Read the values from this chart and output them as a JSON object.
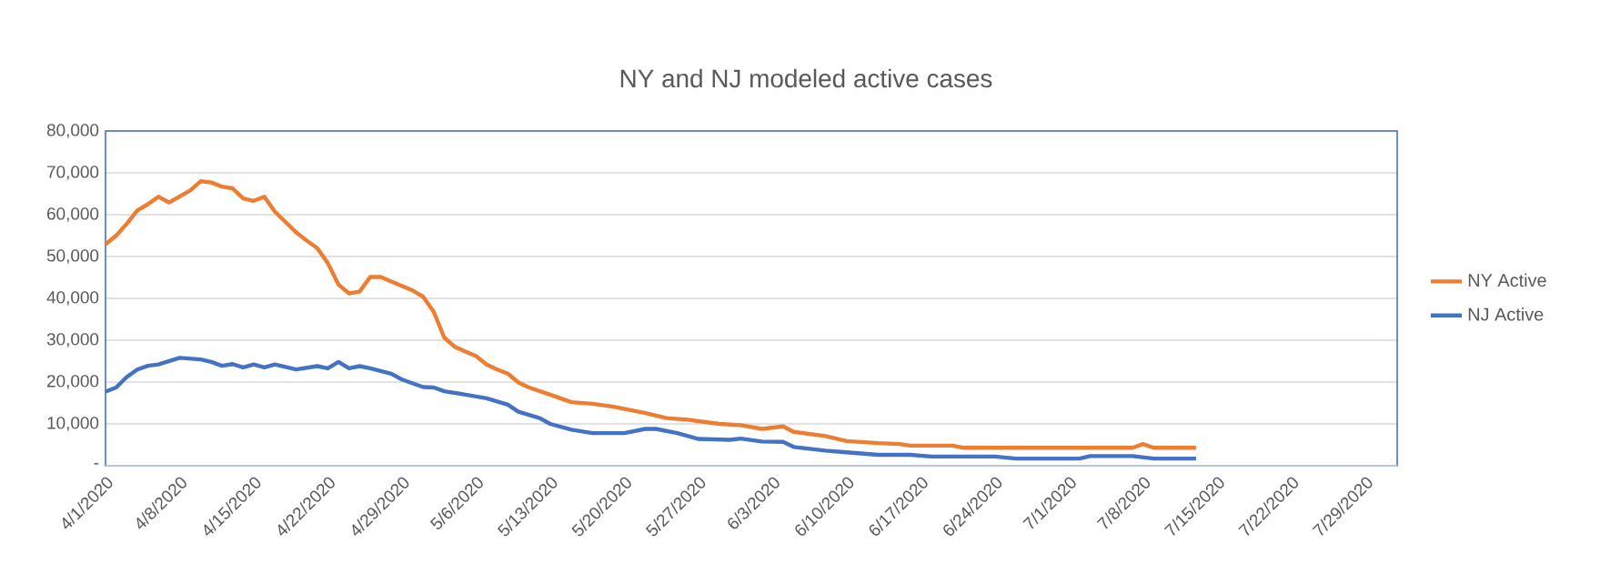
{
  "chart_data": {
    "type": "line",
    "title": "NY and NJ modeled active cases",
    "xlim": [
      "2020-04-01",
      "2020-08-01"
    ],
    "ylim": [
      0,
      80000
    ],
    "xticks": [
      {
        "value": "2020-04-01",
        "label": "4/1/2020"
      },
      {
        "value": "2020-04-08",
        "label": "4/8/2020"
      },
      {
        "value": "2020-04-15",
        "label": "4/15/2020"
      },
      {
        "value": "2020-04-22",
        "label": "4/22/2020"
      },
      {
        "value": "2020-04-29",
        "label": "4/29/2020"
      },
      {
        "value": "2020-05-06",
        "label": "5/6/2020"
      },
      {
        "value": "2020-05-13",
        "label": "5/13/2020"
      },
      {
        "value": "2020-05-20",
        "label": "5/20/2020"
      },
      {
        "value": "2020-05-27",
        "label": "5/27/2020"
      },
      {
        "value": "2020-06-03",
        "label": "6/3/2020"
      },
      {
        "value": "2020-06-10",
        "label": "6/10/2020"
      },
      {
        "value": "2020-06-17",
        "label": "6/17/2020"
      },
      {
        "value": "2020-06-24",
        "label": "6/24/2020"
      },
      {
        "value": "2020-07-01",
        "label": "7/1/2020"
      },
      {
        "value": "2020-07-08",
        "label": "7/8/2020"
      },
      {
        "value": "2020-07-15",
        "label": "7/15/2020"
      },
      {
        "value": "2020-07-22",
        "label": "7/22/2020"
      },
      {
        "value": "2020-07-29",
        "label": "7/29/2020"
      }
    ],
    "yticks": [
      {
        "value": 0,
        "label": "-"
      },
      {
        "value": 10000,
        "label": "10,000"
      },
      {
        "value": 20000,
        "label": "20,000"
      },
      {
        "value": 30000,
        "label": "30,000"
      },
      {
        "value": 40000,
        "label": "40,000"
      },
      {
        "value": 50000,
        "label": "50,000"
      },
      {
        "value": 60000,
        "label": "60,000"
      },
      {
        "value": 70000,
        "label": "70,000"
      },
      {
        "value": 80000,
        "label": "80,000"
      }
    ],
    "grid": "y",
    "legend": "right",
    "marker": "none",
    "line_style": "solid",
    "series": [
      {
        "name": "NY Active",
        "color": "#ed7d31",
        "x": [
          "2020-04-01",
          "2020-04-02",
          "2020-04-03",
          "2020-04-04",
          "2020-04-05",
          "2020-04-06",
          "2020-04-07",
          "2020-04-09",
          "2020-04-10",
          "2020-04-11",
          "2020-04-12",
          "2020-04-13",
          "2020-04-14",
          "2020-04-15",
          "2020-04-16",
          "2020-04-17",
          "2020-04-19",
          "2020-04-20",
          "2020-04-21",
          "2020-04-22",
          "2020-04-23",
          "2020-04-24",
          "2020-04-25",
          "2020-04-26",
          "2020-04-27",
          "2020-04-28",
          "2020-04-30",
          "2020-05-01",
          "2020-05-02",
          "2020-05-03",
          "2020-05-04",
          "2020-05-06",
          "2020-05-07",
          "2020-05-08",
          "2020-05-09",
          "2020-05-10",
          "2020-05-11",
          "2020-05-13",
          "2020-05-15",
          "2020-05-17",
          "2020-05-19",
          "2020-05-22",
          "2020-05-24",
          "2020-05-26",
          "2020-05-29",
          "2020-05-31",
          "2020-06-02",
          "2020-06-04",
          "2020-06-05",
          "2020-06-08",
          "2020-06-10",
          "2020-06-13",
          "2020-06-15",
          "2020-06-16",
          "2020-06-20",
          "2020-06-21",
          "2020-07-07",
          "2020-07-08",
          "2020-07-09",
          "2020-07-13"
        ],
        "values": [
          52900,
          55000,
          57800,
          61000,
          62500,
          64300,
          62900,
          65800,
          68000,
          67700,
          66700,
          66300,
          63900,
          63300,
          64300,
          60700,
          55800,
          53800,
          52000,
          48400,
          43300,
          41200,
          41600,
          45100,
          45100,
          44000,
          41900,
          40400,
          36800,
          30600,
          28400,
          26200,
          24200,
          23000,
          22000,
          19900,
          18700,
          17000,
          15200,
          14800,
          14100,
          12600,
          11400,
          11000,
          10000,
          9700,
          8800,
          9400,
          8100,
          7100,
          5900,
          5400,
          5200,
          4800,
          4800,
          4300,
          4300,
          5200,
          4300,
          4300
        ]
      },
      {
        "name": "NJ Active",
        "color": "#4472c4",
        "x": [
          "2020-04-01",
          "2020-04-02",
          "2020-04-03",
          "2020-04-04",
          "2020-04-05",
          "2020-04-06",
          "2020-04-08",
          "2020-04-10",
          "2020-04-11",
          "2020-04-12",
          "2020-04-13",
          "2020-04-14",
          "2020-04-15",
          "2020-04-16",
          "2020-04-17",
          "2020-04-19",
          "2020-04-21",
          "2020-04-22",
          "2020-04-23",
          "2020-04-24",
          "2020-04-25",
          "2020-04-26",
          "2020-04-28",
          "2020-04-29",
          "2020-05-01",
          "2020-05-02",
          "2020-05-03",
          "2020-05-05",
          "2020-05-07",
          "2020-05-09",
          "2020-05-10",
          "2020-05-12",
          "2020-05-13",
          "2020-05-15",
          "2020-05-17",
          "2020-05-20",
          "2020-05-22",
          "2020-05-23",
          "2020-05-25",
          "2020-05-27",
          "2020-05-30",
          "2020-05-31",
          "2020-06-02",
          "2020-06-04",
          "2020-06-05",
          "2020-06-08",
          "2020-06-10",
          "2020-06-13",
          "2020-06-16",
          "2020-06-18",
          "2020-06-24",
          "2020-06-26",
          "2020-07-02",
          "2020-07-03",
          "2020-07-07",
          "2020-07-09",
          "2020-07-13"
        ],
        "values": [
          17700,
          18700,
          21200,
          23000,
          23900,
          24200,
          25800,
          25400,
          24800,
          23900,
          24300,
          23500,
          24200,
          23500,
          24200,
          23000,
          23800,
          23300,
          24800,
          23300,
          23800,
          23300,
          22000,
          20600,
          18800,
          18700,
          17800,
          17000,
          16100,
          14600,
          12900,
          11400,
          10000,
          8600,
          7800,
          7800,
          8800,
          8800,
          7800,
          6400,
          6200,
          6500,
          5800,
          5700,
          4500,
          3600,
          3200,
          2600,
          2600,
          2200,
          2200,
          1700,
          1700,
          2300,
          2300,
          1700,
          1700
        ]
      }
    ]
  }
}
